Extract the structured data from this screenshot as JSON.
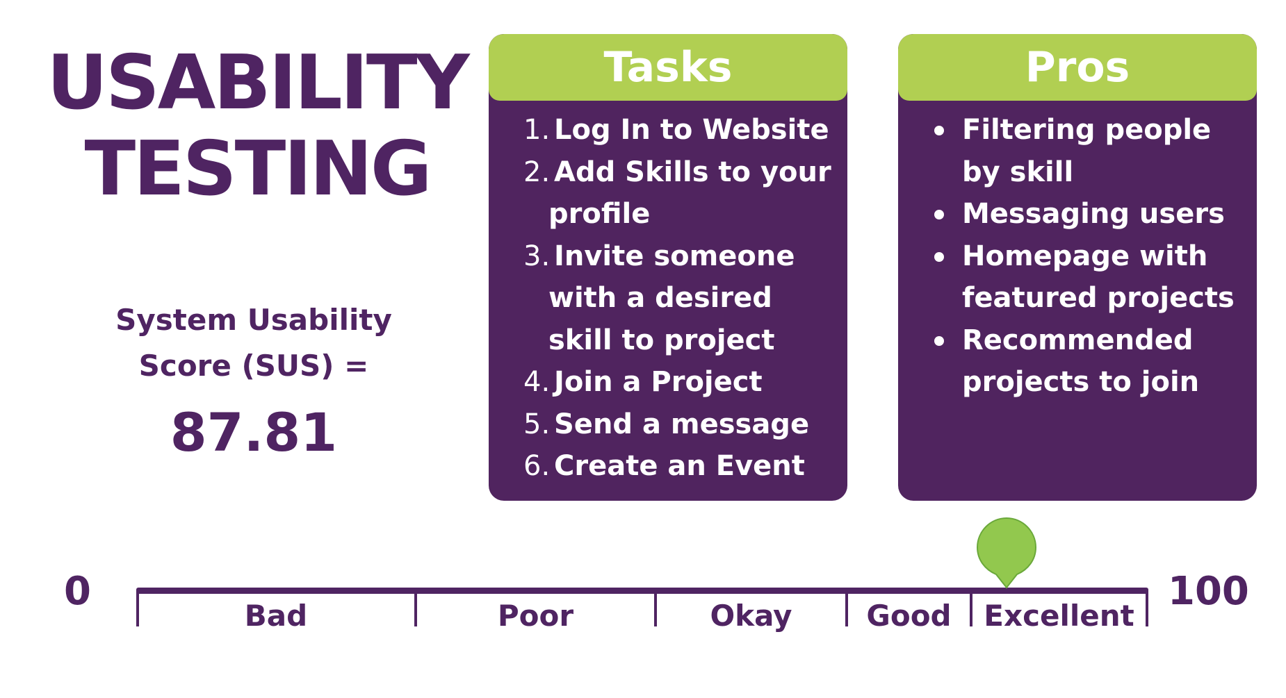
{
  "title": {
    "line1": "USABILITY",
    "line2": "TESTING"
  },
  "sus": {
    "label_line1": "System Usability",
    "label_line2": "Score (SUS) =",
    "score": "87.81"
  },
  "tasks_card": {
    "header": "Tasks",
    "items": [
      {
        "num": "1.",
        "lines": [
          "Log In to Website"
        ]
      },
      {
        "num": "2.",
        "lines": [
          "Add Skills to your",
          "profile"
        ]
      },
      {
        "num": "3.",
        "lines": [
          "Invite someone",
          "with a desired",
          "skill to project"
        ]
      },
      {
        "num": "4.",
        "lines": [
          "Join a Project"
        ]
      },
      {
        "num": "5.",
        "lines": [
          "Send a message"
        ]
      },
      {
        "num": "6.",
        "lines": [
          "Create an Event"
        ]
      }
    ]
  },
  "pros_card": {
    "header": "Pros",
    "items": [
      {
        "lines": [
          "Filtering people",
          "by skill"
        ]
      },
      {
        "lines": [
          "Messaging users"
        ]
      },
      {
        "lines": [
          "Homepage with",
          "featured projects"
        ]
      },
      {
        "lines": [
          "Recommended",
          "projects to join"
        ]
      }
    ]
  },
  "scale": {
    "min_label": "0",
    "max_label": "100",
    "segments": [
      "Bad",
      "Poor",
      "Okay",
      "Good",
      "Excellent"
    ],
    "marker_value": 87.81
  },
  "colors": {
    "purple": "#4f2462",
    "card_purple": "#50245f",
    "green": "#b1cf52",
    "marker_green": "#92c84e"
  }
}
